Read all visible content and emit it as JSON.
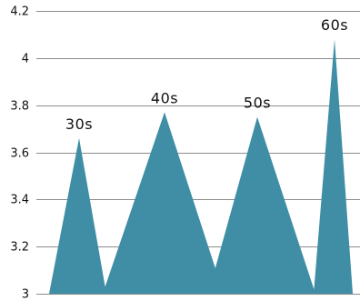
{
  "chart_data": {
    "type": "area",
    "title": "",
    "xlabel": "",
    "ylabel": "",
    "ylim": [
      3,
      4.2
    ],
    "y_ticks": [
      3,
      3.2,
      3.4,
      3.6,
      3.8,
      4,
      4.2
    ],
    "y_tick_labels": [
      "3",
      "3.2",
      "3.4",
      "3.6",
      "3.8",
      "4",
      "4.2"
    ],
    "grid": true,
    "color": "#3f8ea5",
    "categories": [
      "30s",
      "40s",
      "50s",
      "60s"
    ],
    "values": [
      3.66,
      3.77,
      3.75,
      4.08
    ]
  }
}
